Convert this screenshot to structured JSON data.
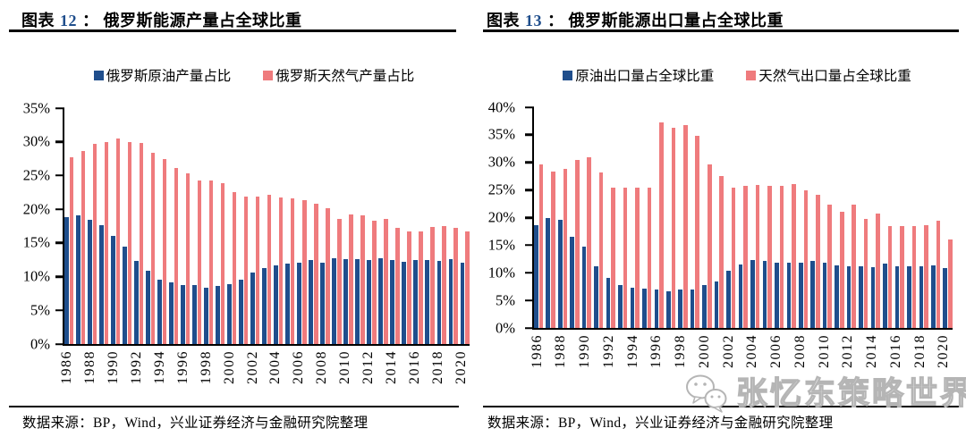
{
  "panels": [
    {
      "figure_prefix": "图表",
      "figure_number": "12",
      "separator": "：",
      "title": "俄罗斯能源产量占全球比重",
      "source": "数据来源：BP，Wind，兴业证券经济与金融研究院整理"
    },
    {
      "figure_prefix": "图表",
      "figure_number": "13",
      "separator": "：",
      "title": "俄罗斯能源出口量占全球比重",
      "source": "数据来源：BP，Wind，兴业证券经济与金融研究院整理"
    }
  ],
  "watermark": {
    "icon": "wechat-icon",
    "text": "张忆东策略世界"
  },
  "colors": {
    "oil_blue": "#1f4e8c",
    "gas_red": "#ef7b7d",
    "figure_number_blue": "#1f4e8c",
    "axis_black": "#000000",
    "watermark_gray": "#b5b5b5"
  },
  "chart_data": [
    {
      "type": "bar",
      "title": "俄罗斯能源产量占全球比重",
      "xlabel": "",
      "ylabel": "",
      "ylim": [
        0,
        35
      ],
      "y_ticks": [
        0,
        5,
        10,
        15,
        20,
        25,
        30,
        35
      ],
      "y_tick_format": "percent",
      "grid": false,
      "legend_position": "top",
      "x": [
        1986,
        1987,
        1988,
        1989,
        1990,
        1991,
        1992,
        1993,
        1994,
        1995,
        1996,
        1997,
        1998,
        1999,
        2000,
        2001,
        2002,
        2003,
        2004,
        2005,
        2006,
        2007,
        2008,
        2009,
        2010,
        2011,
        2012,
        2013,
        2014,
        2015,
        2016,
        2017,
        2018,
        2019,
        2020
      ],
      "x_ticklabels": [
        1986,
        1988,
        1990,
        1992,
        1994,
        1996,
        1998,
        2000,
        2002,
        2004,
        2006,
        2008,
        2010,
        2012,
        2014,
        2016,
        2018,
        2020
      ],
      "series": [
        {
          "name": "俄罗斯原油产量占比",
          "key": "oil-production-share",
          "color": "#1f4e8c",
          "values": [
            18.8,
            19.1,
            18.4,
            17.6,
            16.1,
            14.4,
            12.3,
            10.9,
            9.6,
            9.2,
            8.7,
            8.7,
            8.4,
            8.6,
            8.9,
            9.6,
            10.6,
            11.3,
            11.7,
            11.9,
            12.1,
            12.4,
            12.1,
            12.7,
            12.6,
            12.6,
            12.5,
            12.7,
            12.5,
            12.2,
            12.5,
            12.4,
            12.3,
            12.6,
            12.1
          ]
        },
        {
          "name": "俄罗斯天然气产量占比",
          "key": "gas-production-share",
          "color": "#ef7b7d",
          "values": [
            27.7,
            28.6,
            29.7,
            29.9,
            30.5,
            29.9,
            29.8,
            28.4,
            27.5,
            26.1,
            25.3,
            24.2,
            24.2,
            23.8,
            22.5,
            21.9,
            21.9,
            22.1,
            21.8,
            21.6,
            21.4,
            20.8,
            20.2,
            18.5,
            19.2,
            19.1,
            18.3,
            18.5,
            17.3,
            16.7,
            16.7,
            17.4,
            17.5,
            17.2,
            16.7
          ]
        }
      ]
    },
    {
      "type": "bar",
      "title": "俄罗斯能源出口量占全球比重",
      "xlabel": "",
      "ylabel": "",
      "ylim": [
        0,
        40
      ],
      "y_ticks": [
        0,
        5,
        10,
        15,
        20,
        25,
        30,
        35,
        40
      ],
      "y_tick_format": "percent",
      "grid": false,
      "legend_position": "top",
      "x": [
        1986,
        1987,
        1988,
        1989,
        1990,
        1991,
        1992,
        1993,
        1994,
        1995,
        1996,
        1997,
        1998,
        1999,
        2000,
        2001,
        2002,
        2003,
        2004,
        2005,
        2006,
        2007,
        2008,
        2009,
        2010,
        2011,
        2012,
        2013,
        2014,
        2015,
        2016,
        2017,
        2018,
        2019,
        2020
      ],
      "x_ticklabels": [
        1986,
        1988,
        1990,
        1992,
        1994,
        1996,
        1998,
        2000,
        2002,
        2004,
        2006,
        2008,
        2010,
        2012,
        2014,
        2016,
        2018,
        2020
      ],
      "series": [
        {
          "name": "原油出口量占全球比重",
          "key": "oil-export-share",
          "color": "#1f4e8c",
          "values": [
            18.7,
            19.9,
            19.6,
            16.6,
            14.7,
            11.2,
            9.0,
            7.7,
            7.3,
            7.1,
            6.9,
            6.6,
            6.9,
            6.9,
            7.8,
            8.4,
            10.3,
            11.5,
            12.3,
            12.1,
            11.9,
            11.8,
            11.9,
            12.2,
            11.9,
            11.4,
            11.1,
            11.2,
            11.0,
            11.7,
            11.2,
            11.1,
            11.1,
            11.4,
            10.8
          ]
        },
        {
          "name": "天然气出口量占全球比重",
          "key": "gas-export-share",
          "color": "#ef7b7d",
          "values": [
            29.6,
            28.4,
            28.8,
            30.4,
            30.9,
            28.1,
            25.5,
            25.4,
            25.4,
            25.5,
            37.3,
            36.2,
            36.8,
            34.9,
            29.6,
            27.6,
            25.5,
            25.8,
            25.9,
            25.8,
            25.8,
            26.1,
            24.9,
            24.2,
            22.3,
            21.1,
            22.3,
            19.7,
            20.7,
            18.5,
            18.5,
            18.4,
            18.6,
            19.4,
            16.0
          ]
        }
      ]
    }
  ]
}
